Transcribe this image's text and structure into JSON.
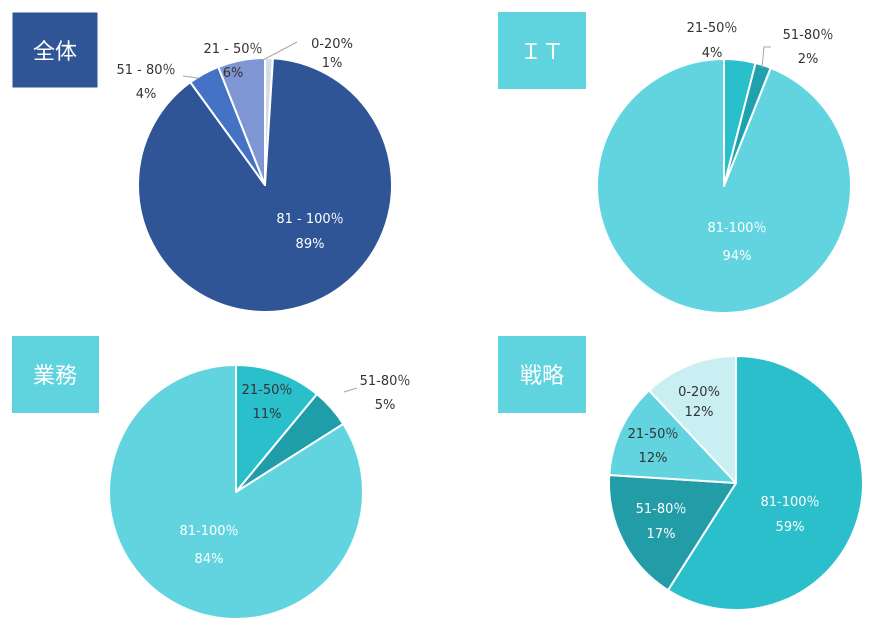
{
  "colors": {
    "zentai_title_bg": "#2F5597",
    "light_title_bg": "#5FD3DE",
    "leader_line": "#a6a6a6"
  },
  "chart_data": [
    {
      "type": "pie",
      "title": "全体",
      "title_style": "dark",
      "slices": [
        {
          "label": "0-20%",
          "value": 1,
          "value_text": "1%",
          "color": "#D6DCE5"
        },
        {
          "label": "81 - 100％",
          "value": 89,
          "value_text": "89%",
          "color": "#2F5597"
        },
        {
          "label": "51 - 80％",
          "value": 4,
          "value_text": "4%",
          "color": "#4472C4"
        },
        {
          "label": "21 - 50％",
          "value": 6,
          "value_text": "6%",
          "color": "#7F96D4"
        }
      ]
    },
    {
      "type": "pie",
      "title": "ＩＴ",
      "title_style": "light",
      "slices": [
        {
          "label": "21-50％",
          "value": 4,
          "value_text": "4%",
          "color": "#29BFCB"
        },
        {
          "label": "51-80％",
          "value": 2,
          "value_text": "2%",
          "color": "#1FA2AD"
        },
        {
          "label": "81-100％",
          "value": 94,
          "value_text": "94%",
          "color": "#62D4DF"
        }
      ]
    },
    {
      "type": "pie",
      "title": "業務",
      "title_style": "light",
      "slices": [
        {
          "label": "21-50％",
          "value": 11,
          "value_text": "11%",
          "color": "#29BFCB"
        },
        {
          "label": "51-80％",
          "value": 5,
          "value_text": "5%",
          "color": "#1F9EA9"
        },
        {
          "label": "81-100％",
          "value": 84,
          "value_text": "84%",
          "color": "#62D4DF"
        }
      ]
    },
    {
      "type": "pie",
      "title": "戦略",
      "title_style": "light",
      "slices": [
        {
          "label": "81-100％",
          "value": 59,
          "value_text": "59%",
          "color": "#2BBFCB"
        },
        {
          "label": "51-80％",
          "value": 17,
          "value_text": "17%",
          "color": "#229CA6"
        },
        {
          "label": "21-50％",
          "value": 12,
          "value_text": "12%",
          "color": "#62D4DF"
        },
        {
          "label": "0-20%",
          "value": 12,
          "value_text": "12%",
          "color": "#C9EFF3"
        }
      ]
    }
  ]
}
